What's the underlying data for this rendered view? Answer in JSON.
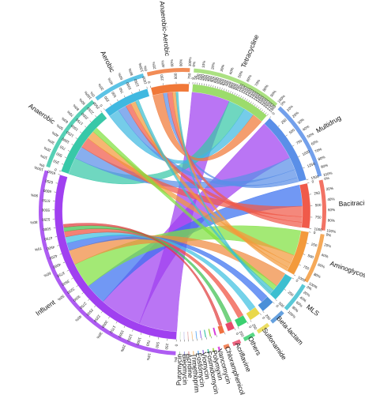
{
  "chart_data": {
    "type": "chord",
    "title": "",
    "segments": [
      {
        "name": "Tetracycline",
        "value": 1800,
        "color": "#9cdc6c",
        "ticks": [
          "0",
          "50",
          "100",
          "150",
          "200",
          "250",
          "300",
          "350",
          "400",
          "450",
          "500",
          "550",
          "600",
          "650",
          "700",
          "750",
          "800",
          "850",
          "900",
          "950",
          "1000",
          "1050",
          "1100",
          "1150",
          "1200",
          "1250",
          "1300",
          "1350",
          "1400",
          "1450",
          "1500",
          "1550",
          "1600",
          "1650",
          "1700",
          "1750",
          "1800"
        ],
        "pct_ticks": [
          "0%",
          "10%",
          "20%",
          "30%",
          "40%",
          "50%",
          "60%",
          "70%",
          "80%",
          "90%",
          "100%"
        ]
      },
      {
        "name": "Multidrug",
        "value": 1600,
        "color": "#5a8fe8",
        "ticks": [
          "0",
          "250",
          "500",
          "750",
          "1000",
          "1250",
          "1500"
        ],
        "pct_ticks": [
          "0%",
          "10%",
          "20%",
          "30%",
          "40%",
          "50%",
          "60%",
          "70%",
          "80%",
          "90%",
          "100%"
        ]
      },
      {
        "name": "Bacitracin",
        "value": 1000,
        "color": "#f05a4a",
        "ticks": [
          "0",
          "250",
          "500",
          "750",
          "1000"
        ],
        "pct_ticks": [
          "0%",
          "20%",
          "40%",
          "60%",
          "80%",
          "100%"
        ]
      },
      {
        "name": "Aminoglycoside",
        "value": 1000,
        "color": "#f39a3c",
        "ticks": [
          "0",
          "250",
          "500",
          "750",
          "1000"
        ],
        "pct_ticks": [
          "0%",
          "20%",
          "40%",
          "60%",
          "80%",
          "100%"
        ]
      },
      {
        "name": "MLS",
        "value": 600,
        "color": "#3dbfd0",
        "ticks": [
          "0",
          "250",
          "500"
        ],
        "pct_ticks": [
          "0%",
          "20%",
          "40%",
          "60%",
          "80%",
          "100%"
        ]
      },
      {
        "name": "Beta-lactam",
        "value": 300,
        "color": "#4a8fd8",
        "ticks": [
          "0",
          "250"
        ],
        "pct_ticks": []
      },
      {
        "name": "Sulfonamide",
        "value": 260,
        "color": "#e9d84a",
        "ticks": [
          "0",
          "250"
        ],
        "pct_ticks": []
      },
      {
        "name": "Others",
        "value": 230,
        "color": "#3ad070",
        "ticks": [
          "0",
          "250"
        ],
        "pct_ticks": []
      },
      {
        "name": "Acriflavine",
        "value": 160,
        "color": "#e84a6a",
        "ticks": [
          "0"
        ],
        "pct_ticks": []
      },
      {
        "name": "Chloramphenicol",
        "value": 110,
        "color": "#f07040",
        "ticks": [
          "0"
        ],
        "pct_ticks": []
      },
      {
        "name": "Vancomycin",
        "value": 40,
        "color": "#d83ad8",
        "ticks": [
          "0"
        ],
        "pct_ticks": []
      },
      {
        "name": "Polymyxin",
        "value": 30,
        "color": "#a0d040",
        "ticks": [
          "0"
        ],
        "pct_ticks": []
      },
      {
        "name": "Fosmidomycin",
        "value": 25,
        "color": "#30c0a0",
        "ticks": [
          "0"
        ],
        "pct_ticks": []
      },
      {
        "name": "Viomycin",
        "value": 20,
        "color": "#8050e0",
        "ticks": [
          "0"
        ],
        "pct_ticks": []
      },
      {
        "name": "Fosfomycin",
        "value": 20,
        "color": "#50a0f0",
        "ticks": [
          "0"
        ],
        "pct_ticks": []
      },
      {
        "name": "Trimethoprim",
        "value": 15,
        "color": "#f0a040",
        "ticks": [
          "0"
        ],
        "pct_ticks": []
      },
      {
        "name": "Acridine",
        "value": 12,
        "color": "#c04040",
        "ticks": [
          "0"
        ],
        "pct_ticks": []
      },
      {
        "name": "Bleomycin",
        "value": 10,
        "color": "#4040c0",
        "ticks": [
          "0"
        ],
        "pct_ticks": []
      },
      {
        "name": "Puromycin",
        "value": 8,
        "color": "#40a040",
        "ticks": [
          "0"
        ],
        "pct_ticks": []
      },
      {
        "name": "Influent",
        "value": 5100,
        "color": "#a040f0",
        "ticks": [
          "0",
          "250",
          "500",
          "750",
          "1000",
          "1250",
          "1500",
          "1750",
          "2000",
          "2250",
          "2500",
          "2750",
          "3000",
          "3250",
          "3500",
          "3750",
          "4000",
          "4250",
          "4500",
          "4750",
          "5000",
          "5250",
          "5500",
          "5750",
          "6000",
          "6250",
          "6500"
        ],
        "pct_ticks": [
          "0%",
          "10%",
          "20%",
          "30%",
          "40%",
          "50%",
          "60%",
          "70%",
          "80%",
          "90%",
          "100%"
        ]
      },
      {
        "name": "Anaerobic",
        "value": 1600,
        "color": "#38c8a8",
        "ticks": [
          "0",
          "250",
          "500",
          "750",
          "1000",
          "1250",
          "1500",
          "1750",
          "2000",
          "2250",
          "2500"
        ],
        "pct_ticks": [
          "0%",
          "10%",
          "20%",
          "30%",
          "40%",
          "50%",
          "60%",
          "70%",
          "80%",
          "90%",
          "100%"
        ]
      },
      {
        "name": "Aerobic",
        "value": 1050,
        "color": "#40b8e0",
        "ticks": [
          "0",
          "250",
          "500",
          "750",
          "1000",
          "1250",
          "1500"
        ],
        "pct_ticks": [
          "0%",
          "20%",
          "40%",
          "60%",
          "80%",
          "100%"
        ]
      },
      {
        "name": "Anaerobic-Aerobic",
        "value": 850,
        "color": "#f07838",
        "ticks": [
          "0",
          "250",
          "500",
          "750"
        ],
        "pct_ticks": [
          "0%",
          "20%",
          "40%",
          "60%",
          "80%",
          "100%"
        ]
      }
    ],
    "flows": [
      {
        "from": "Influent",
        "to": "Tetracycline",
        "value": 900,
        "color": "#a040f0"
      },
      {
        "from": "Influent",
        "to": "Multidrug",
        "value": 1000,
        "color": "#a040f0"
      },
      {
        "from": "Influent",
        "to": "Bacitracin",
        "value": 500,
        "color": "#3a70f0"
      },
      {
        "from": "Influent",
        "to": "Aminoglycoside",
        "value": 600,
        "color": "#80e040"
      },
      {
        "from": "Influent",
        "to": "MLS",
        "value": 350,
        "color": "#f08a40"
      },
      {
        "from": "Influent",
        "to": "Beta-lactam",
        "value": 180,
        "color": "#3a70f0"
      },
      {
        "from": "Influent",
        "to": "Sulfonamide",
        "value": 150,
        "color": "#40c0e0"
      },
      {
        "from": "Influent",
        "to": "Others",
        "value": 130,
        "color": "#f05040"
      },
      {
        "from": "Influent",
        "to": "Acriflavine",
        "value": 100,
        "color": "#40c050"
      },
      {
        "from": "Influent",
        "to": "Chloramphenicol",
        "value": 70,
        "color": "#e04040"
      },
      {
        "from": "Anaerobic",
        "to": "Tetracycline",
        "value": 400,
        "color": "#38c8a8"
      },
      {
        "from": "Anaerobic",
        "to": "Multidrug",
        "value": 300,
        "color": "#5a8fe8"
      },
      {
        "from": "Anaerobic",
        "to": "Bacitracin",
        "value": 250,
        "color": "#f05a4a"
      },
      {
        "from": "Anaerobic",
        "to": "Aminoglycoside",
        "value": 200,
        "color": "#f39a3c"
      },
      {
        "from": "Anaerobic",
        "to": "MLS",
        "value": 120,
        "color": "#80e040"
      },
      {
        "from": "Aerobic",
        "to": "Tetracycline",
        "value": 250,
        "color": "#40b8e0"
      },
      {
        "from": "Aerobic",
        "to": "Multidrug",
        "value": 200,
        "color": "#5a8fe8"
      },
      {
        "from": "Aerobic",
        "to": "Bacitracin",
        "value": 130,
        "color": "#f05a4a"
      },
      {
        "from": "Aerobic",
        "to": "Aminoglycoside",
        "value": 120,
        "color": "#f39a3c"
      },
      {
        "from": "Aerobic",
        "to": "MLS",
        "value": 80,
        "color": "#3dbfd0"
      },
      {
        "from": "Anaerobic-Aerobic",
        "to": "Tetracycline",
        "value": 250,
        "color": "#f07838"
      },
      {
        "from": "Anaerobic-Aerobic",
        "to": "Multidrug",
        "value": 100,
        "color": "#5a8fe8"
      },
      {
        "from": "Anaerobic-Aerobic",
        "to": "Bacitracin",
        "value": 120,
        "color": "#f05a4a"
      },
      {
        "from": "Anaerobic-Aerobic",
        "to": "Aminoglycoside",
        "value": 80,
        "color": "#f39a3c"
      },
      {
        "from": "Anaerobic-Aerobic",
        "to": "MLS",
        "value": 50,
        "color": "#3dbfd0"
      }
    ]
  }
}
